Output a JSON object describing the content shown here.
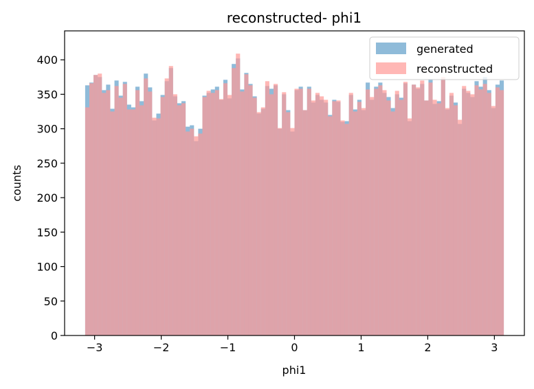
{
  "chart_data": {
    "type": "histogram",
    "title": "reconstructed- phi1",
    "xlabel": "phi1",
    "ylabel": "counts",
    "xlim": [
      -3.45,
      3.45
    ],
    "ylim": [
      0,
      442
    ],
    "xticks": [
      -3,
      -2,
      -1,
      0,
      1,
      2,
      3
    ],
    "yticks": [
      0,
      50,
      100,
      150,
      200,
      250,
      300,
      350,
      400
    ],
    "xtick_labels": [
      "−3",
      "−2",
      "−1",
      "0",
      "1",
      "2",
      "3"
    ],
    "ytick_labels": [
      "0",
      "50",
      "100",
      "150",
      "200",
      "250",
      "300",
      "350",
      "400"
    ],
    "bins": {
      "start": -3.14159,
      "end": 3.14159,
      "count": 100
    },
    "legend_position": "upper-right",
    "grid": false,
    "series": [
      {
        "name": "generated",
        "color": "#1f77b4",
        "alpha": 0.5,
        "values": [
          363,
          367,
          378,
          375,
          356,
          364,
          329,
          370,
          348,
          368,
          335,
          331,
          361,
          340,
          380,
          360,
          312,
          322,
          349,
          369,
          388,
          347,
          337,
          340,
          303,
          305,
          282,
          300,
          348,
          352,
          357,
          361,
          342,
          371,
          344,
          394,
          402,
          357,
          381,
          365,
          347,
          322,
          329,
          362,
          358,
          363,
          300,
          350,
          327,
          296,
          356,
          361,
          327,
          361,
          338,
          349,
          342,
          338,
          320,
          342,
          339,
          310,
          311,
          349,
          328,
          342,
          327,
          367,
          342,
          361,
          367,
          352,
          346,
          330,
          350,
          345,
          366,
          311,
          364,
          358,
          365,
          341,
          372,
          336,
          340,
          372,
          328,
          348,
          338,
          307,
          358,
          352,
          346,
          369,
          361,
          375,
          356,
          330,
          364,
          370
        ]
      },
      {
        "name": "reconstructed",
        "color": "#ff9896",
        "alpha": 0.7,
        "values": [
          331,
          366,
          378,
          380,
          352,
          356,
          325,
          362,
          345,
          365,
          328,
          328,
          356,
          334,
          373,
          354,
          316,
          315,
          346,
          373,
          391,
          350,
          334,
          337,
          296,
          300,
          289,
          293,
          346,
          355,
          352,
          356,
          343,
          366,
          349,
          388,
          409,
          354,
          379,
          363,
          345,
          324,
          331,
          369,
          350,
          365,
          301,
          353,
          324,
          301,
          358,
          358,
          327,
          358,
          341,
          352,
          347,
          342,
          318,
          340,
          341,
          312,
          307,
          352,
          325,
          339,
          330,
          357,
          346,
          358,
          363,
          356,
          341,
          325,
          355,
          342,
          368,
          315,
          364,
          360,
          370,
          341,
          367,
          342,
          337,
          375,
          330,
          352,
          334,
          313,
          362,
          355,
          350,
          363,
          357,
          365,
          352,
          333,
          360,
          356
        ]
      }
    ]
  }
}
